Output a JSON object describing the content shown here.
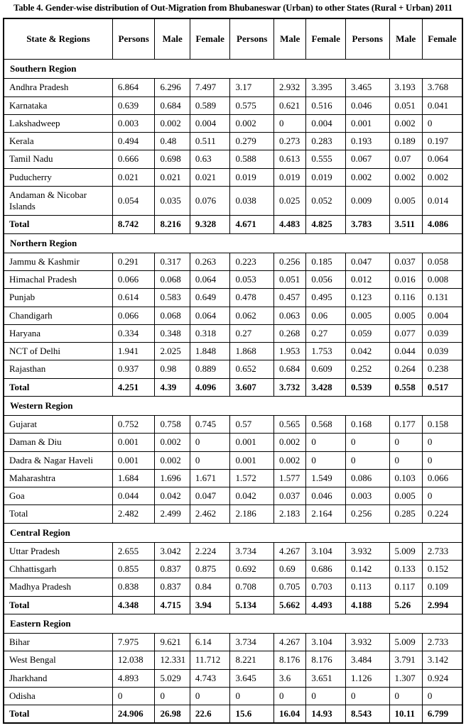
{
  "title": "Table 4. Gender-wise distribution of Out-Migration from Bhubaneswar (Urban) to other States (Rural + Urban) 2011",
  "table": {
    "header": [
      "State & Regions",
      "Persons",
      "Male",
      "Female",
      "Persons",
      "Male",
      "Female",
      "Persons",
      "Male",
      "Female"
    ],
    "sections": [
      {
        "region": "Southern Region",
        "rows": [
          {
            "label": "Andhra Pradesh",
            "bold": false,
            "values": [
              "6.864",
              "6.296",
              "7.497",
              "3.17",
              "2.932",
              "3.395",
              "3.465",
              "3.193",
              "3.768"
            ]
          },
          {
            "label": "Karnataka",
            "bold": false,
            "values": [
              "0.639",
              "0.684",
              "0.589",
              "0.575",
              "0.621",
              "0.516",
              "0.046",
              "0.051",
              "0.041"
            ]
          },
          {
            "label": "Lakshadweep",
            "bold": false,
            "values": [
              "0.003",
              "0.002",
              "0.004",
              "0.002",
              "0",
              "0.004",
              "0.001",
              "0.002",
              "0"
            ]
          },
          {
            "label": "Kerala",
            "bold": false,
            "values": [
              "0.494",
              "0.48",
              "0.511",
              "0.279",
              "0.273",
              "0.283",
              "0.193",
              "0.189",
              "0.197"
            ]
          },
          {
            "label": "Tamil Nadu",
            "bold": false,
            "values": [
              "0.666",
              "0.698",
              "0.63",
              "0.588",
              "0.613",
              "0.555",
              "0.067",
              "0.07",
              "0.064"
            ]
          },
          {
            "label": "Puducherry",
            "bold": false,
            "values": [
              "0.021",
              "0.021",
              "0.021",
              "0.019",
              "0.019",
              "0.019",
              "0.002",
              "0.002",
              "0.002"
            ]
          },
          {
            "label": "Andaman & Nicobar Islands",
            "bold": false,
            "values": [
              "0.054",
              "0.035",
              "0.076",
              "0.038",
              "0.025",
              "0.052",
              "0.009",
              "0.005",
              "0.014"
            ]
          },
          {
            "label": "Total",
            "bold": true,
            "values": [
              "8.742",
              "8.216",
              "9.328",
              "4.671",
              "4.483",
              "4.825",
              "3.783",
              "3.511",
              "4.086"
            ]
          }
        ]
      },
      {
        "region": "Northern Region",
        "rows": [
          {
            "label": "Jammu & Kashmir",
            "bold": false,
            "values": [
              "0.291",
              "0.317",
              "0.263",
              "0.223",
              "0.256",
              "0.185",
              "0.047",
              "0.037",
              "0.058"
            ]
          },
          {
            "label": "Himachal Pradesh",
            "bold": false,
            "values": [
              "0.066",
              "0.068",
              "0.064",
              "0.053",
              "0.051",
              "0.056",
              "0.012",
              "0.016",
              "0.008"
            ]
          },
          {
            "label": "Punjab",
            "bold": false,
            "values": [
              "0.614",
              "0.583",
              "0.649",
              "0.478",
              "0.457",
              "0.495",
              "0.123",
              "0.116",
              "0.131"
            ]
          },
          {
            "label": "Chandigarh",
            "bold": false,
            "values": [
              "0.066",
              "0.068",
              "0.064",
              "0.062",
              "0.063",
              "0.06",
              "0.005",
              "0.005",
              "0.004"
            ]
          },
          {
            "label": "Haryana",
            "bold": false,
            "values": [
              "0.334",
              "0.348",
              "0.318",
              "0.27",
              "0.268",
              "0.27",
              "0.059",
              "0.077",
              "0.039"
            ]
          },
          {
            "label": "NCT of Delhi",
            "bold": false,
            "values": [
              "1.941",
              "2.025",
              "1.848",
              "1.868",
              "1.953",
              "1.753",
              "0.042",
              "0.044",
              "0.039"
            ]
          },
          {
            "label": "Rajasthan",
            "bold": false,
            "values": [
              "0.937",
              "0.98",
              "0.889",
              "0.652",
              "0.684",
              "0.609",
              "0.252",
              "0.264",
              "0.238"
            ]
          },
          {
            "label": "Total",
            "bold": true,
            "values": [
              "4.251",
              "4.39",
              "4.096",
              "3.607",
              "3.732",
              "3.428",
              "0.539",
              "0.558",
              "0.517"
            ]
          }
        ]
      },
      {
        "region": "Western Region",
        "rows": [
          {
            "label": "Gujarat",
            "bold": false,
            "values": [
              "0.752",
              "0.758",
              "0.745",
              "0.57",
              "0.565",
              "0.568",
              "0.168",
              "0.177",
              "0.158"
            ]
          },
          {
            "label": "Daman & Diu",
            "bold": false,
            "values": [
              "0.001",
              "0.002",
              "0",
              "0.001",
              "0.002",
              "0",
              "0",
              "0",
              "0"
            ]
          },
          {
            "label": "Dadra & Nagar Haveli",
            "bold": false,
            "values": [
              "0.001",
              "0.002",
              "0",
              "0.001",
              "0.002",
              "0",
              "0",
              "0",
              "0"
            ]
          },
          {
            "label": "Maharashtra",
            "bold": false,
            "values": [
              "1.684",
              "1.696",
              "1.671",
              "1.572",
              "1.577",
              "1.549",
              "0.086",
              "0.103",
              "0.066"
            ]
          },
          {
            "label": "Goa",
            "bold": false,
            "values": [
              "0.044",
              "0.042",
              "0.047",
              "0.042",
              "0.037",
              "0.046",
              "0.003",
              "0.005",
              "0"
            ]
          },
          {
            "label": "Total",
            "bold": false,
            "values": [
              "2.482",
              "2.499",
              "2.462",
              "2.186",
              "2.183",
              "2.164",
              "0.256",
              "0.285",
              "0.224"
            ]
          }
        ]
      },
      {
        "region": "Central Region",
        "rows": [
          {
            "label": "Uttar Pradesh",
            "bold": false,
            "values": [
              "2.655",
              "3.042",
              "2.224",
              "3.734",
              "4.267",
              "3.104",
              "3.932",
              "5.009",
              "2.733"
            ]
          },
          {
            "label": "Chhattisgarh",
            "bold": false,
            "values": [
              "0.855",
              "0.837",
              "0.875",
              "0.692",
              "0.69",
              "0.686",
              "0.142",
              "0.133",
              "0.152"
            ]
          },
          {
            "label": "Madhya Pradesh",
            "bold": false,
            "values": [
              "0.838",
              "0.837",
              "0.84",
              "0.708",
              "0.705",
              "0.703",
              "0.113",
              "0.117",
              "0.109"
            ]
          },
          {
            "label": "Total",
            "bold": true,
            "values": [
              "4.348",
              "4.715",
              "3.94",
              "5.134",
              "5.662",
              "4.493",
              "4.188",
              "5.26",
              "2.994"
            ]
          }
        ]
      },
      {
        "region": "Eastern Region",
        "rows": [
          {
            "label": "Bihar",
            "bold": false,
            "values": [
              "7.975",
              "9.621",
              "6.14",
              "3.734",
              "4.267",
              "3.104",
              "3.932",
              "5.009",
              "2.733"
            ]
          },
          {
            "label": "West Bengal",
            "bold": false,
            "values": [
              "12.038",
              "12.331",
              "11.712",
              "8.221",
              "8.176",
              "8.176",
              "3.484",
              "3.791",
              "3.142"
            ]
          },
          {
            "label": "Jharkhand",
            "bold": false,
            "values": [
              "4.893",
              "5.029",
              "4.743",
              "3.645",
              "3.6",
              "3.651",
              "1.126",
              "1.307",
              "0.924"
            ]
          },
          {
            "label": "Odisha",
            "bold": false,
            "values": [
              "0",
              "0",
              "0",
              "0",
              "0",
              "0",
              "0",
              "0",
              "0"
            ]
          },
          {
            "label": "Total",
            "bold": true,
            "values": [
              "24.906",
              "26.98",
              "22.6",
              "15.6",
              "16.04",
              "14.93",
              "8.543",
              "10.11",
              "6.799"
            ]
          }
        ]
      }
    ]
  }
}
